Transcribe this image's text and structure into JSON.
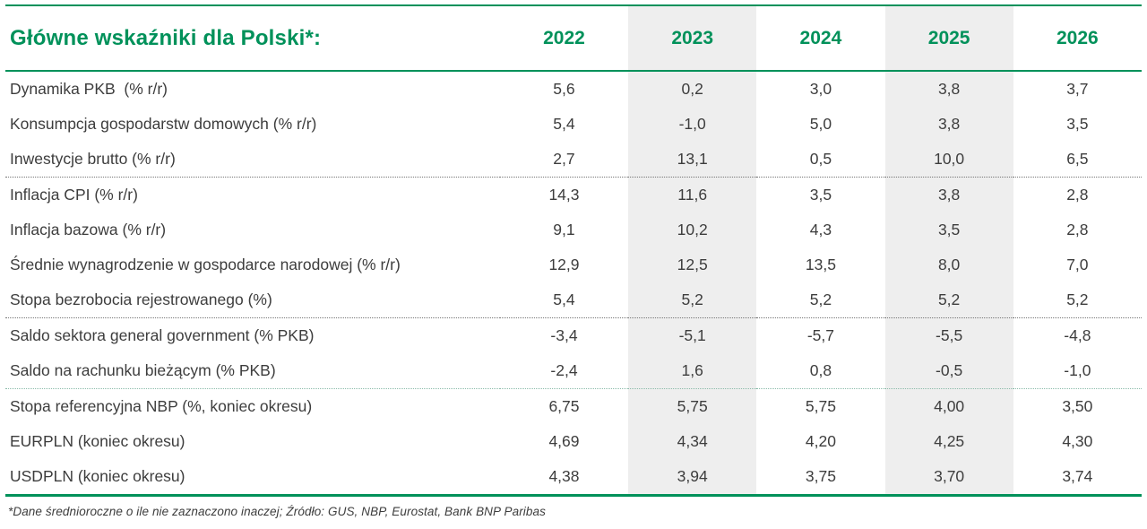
{
  "colors": {
    "accent_green": "#00915a",
    "column_shade": "#eeeeee",
    "text": "#3d3d3d"
  },
  "table": {
    "title": "Główne wskaźniki dla Polski*:",
    "years": [
      "2022",
      "2023",
      "2024",
      "2025",
      "2026"
    ],
    "groups": [
      {
        "rows": [
          {
            "label": "Dynamika PKB  (% r/r)",
            "values": [
              "5,6",
              "0,2",
              "3,0",
              "3,8",
              "3,7"
            ]
          },
          {
            "label": "Konsumpcja gospodarstw domowych (% r/r)",
            "values": [
              "5,4",
              "-1,0",
              "5,0",
              "3,8",
              "3,5"
            ]
          },
          {
            "label": "Inwestycje brutto (% r/r)",
            "values": [
              "2,7",
              "13,1",
              "0,5",
              "10,0",
              "6,5"
            ]
          }
        ]
      },
      {
        "rows": [
          {
            "label": "Inflacja CPI (% r/r)",
            "values": [
              "14,3",
              "11,6",
              "3,5",
              "3,8",
              "2,8"
            ]
          },
          {
            "label": "Inflacja bazowa (% r/r)",
            "values": [
              "9,1",
              "10,2",
              "4,3",
              "3,5",
              "2,8"
            ]
          },
          {
            "label": "Średnie wynagrodzenie w gospodarce narodowej (% r/r)",
            "values": [
              "12,9",
              "12,5",
              "13,5",
              "8,0",
              "7,0"
            ]
          },
          {
            "label": "Stopa bezrobocia rejestrowanego (%)",
            "values": [
              "5,4",
              "5,2",
              "5,2",
              "5,2",
              "5,2"
            ]
          }
        ]
      },
      {
        "rows": [
          {
            "label": "Saldo sektora general government (% PKB)",
            "values": [
              "-3,4",
              "-5,1",
              "-5,7",
              "-5,5",
              "-4,8"
            ]
          },
          {
            "label": "Saldo na rachunku bieżącym (% PKB)",
            "values": [
              "-2,4",
              "1,6",
              "0,8",
              "-0,5",
              "-1,0"
            ]
          }
        ]
      },
      {
        "rows": [
          {
            "label": "Stopa referencyjna NBP (%, koniec okresu)",
            "values": [
              "6,75",
              "5,75",
              "5,75",
              "4,00",
              "3,50"
            ]
          },
          {
            "label": "EURPLN (koniec okresu)",
            "values": [
              "4,69",
              "4,34",
              "4,20",
              "4,25",
              "4,30"
            ]
          },
          {
            "label": "USDPLN (koniec okresu)",
            "values": [
              "4,38",
              "3,94",
              "3,75",
              "3,70",
              "3,74"
            ]
          }
        ]
      }
    ],
    "footnote": "*Dane średnioroczne o ile nie zaznaczono inaczej; Źródło: GUS, NBP, Eurostat, Bank BNP Paribas"
  }
}
